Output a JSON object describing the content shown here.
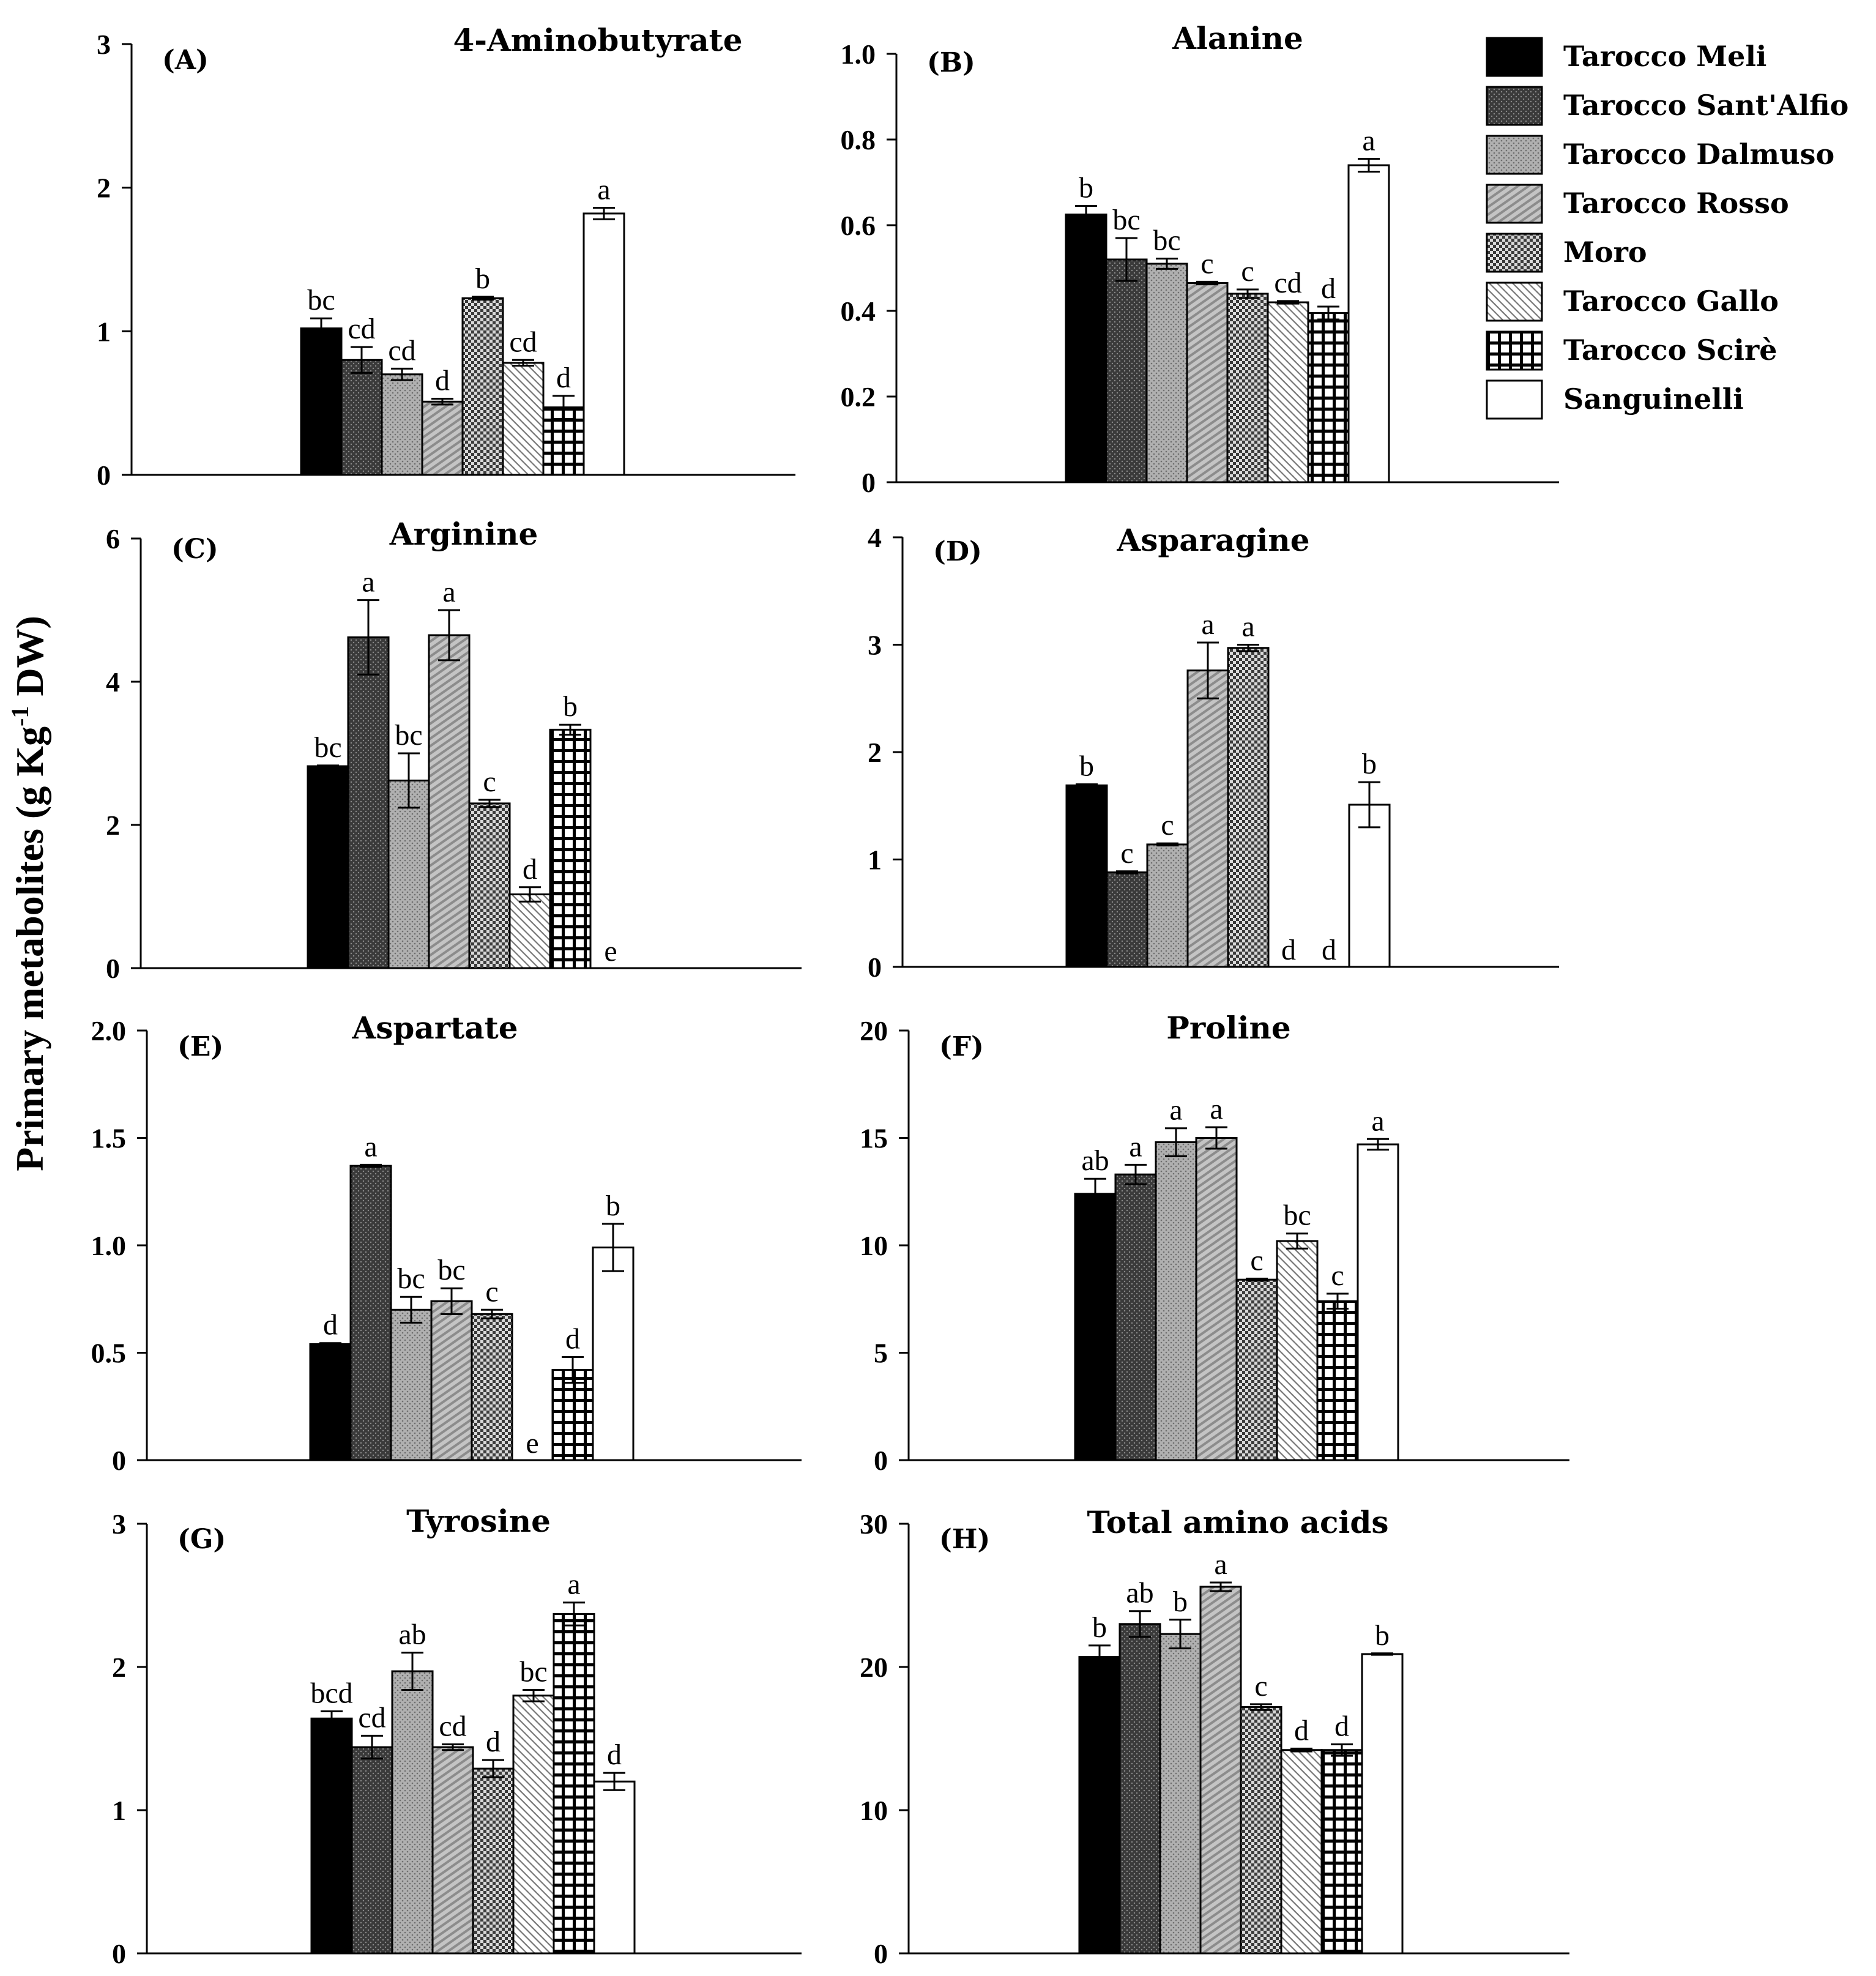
{
  "y_axis_label": "Primary metabolites (g Kg",
  "y_axis_label_sup": "-1",
  "y_axis_label_end": " DW)",
  "legend": [
    {
      "name": "Tarocco Meli",
      "fill": "solid-black"
    },
    {
      "name": "Tarocco Sant'Alfio",
      "fill": "dark-dots"
    },
    {
      "name": "Tarocco Dalmuso",
      "fill": "light-dots"
    },
    {
      "name": "Tarocco Rosso",
      "fill": "diagonal-light"
    },
    {
      "name": "Moro",
      "fill": "dark-checker"
    },
    {
      "name": "Tarocco Gallo",
      "fill": "diagonal-fine"
    },
    {
      "name": "Tarocco Scirè",
      "fill": "grid"
    },
    {
      "name": "Sanguinelli",
      "fill": "white"
    }
  ],
  "chart_data": [
    {
      "type": "bar",
      "panel": "(A)",
      "title": "4-Aminobutyrate",
      "ylim": [
        0,
        3
      ],
      "yticks": [
        "0",
        "1",
        "2",
        "3"
      ],
      "categories": [
        "Tarocco Meli",
        "Tarocco Sant'Alfio",
        "Tarocco Dalmuso",
        "Tarocco Rosso",
        "Moro",
        "Tarocco Gallo",
        "Tarocco Scirè",
        "Sanguinelli"
      ],
      "values": [
        1.02,
        0.8,
        0.7,
        0.51,
        1.23,
        0.78,
        0.47,
        1.82
      ],
      "errors": [
        0.07,
        0.09,
        0.04,
        0.02,
        0.01,
        0.02,
        0.08,
        0.04
      ],
      "letters": [
        "bc",
        "cd",
        "cd",
        "d",
        "b",
        "cd",
        "d",
        "a"
      ]
    },
    {
      "type": "bar",
      "panel": "(B)",
      "title": "Alanine",
      "ylim": [
        0,
        1.0
      ],
      "yticks": [
        "0",
        "0.2",
        "0.4",
        "0.6",
        "0.8",
        "1.0"
      ],
      "categories": [
        "Tarocco Meli",
        "Tarocco Sant'Alfio",
        "Tarocco Dalmuso",
        "Tarocco Rosso",
        "Moro",
        "Tarocco Gallo",
        "Tarocco Scirè",
        "Sanguinelli"
      ],
      "values": [
        0.625,
        0.52,
        0.51,
        0.465,
        0.44,
        0.42,
        0.395,
        0.74
      ],
      "errors": [
        0.02,
        0.05,
        0.012,
        0.003,
        0.01,
        0.003,
        0.015,
        0.015
      ],
      "letters": [
        "b",
        "bc",
        "bc",
        "c",
        "c",
        "cd",
        "d",
        "a"
      ]
    },
    {
      "type": "bar",
      "panel": "(C)",
      "title": "Arginine",
      "ylim": [
        0,
        6
      ],
      "yticks": [
        "0",
        "2",
        "4",
        "6"
      ],
      "categories": [
        "Tarocco Meli",
        "Tarocco Sant'Alfio",
        "Tarocco Dalmuso",
        "Tarocco Rosso",
        "Moro",
        "Tarocco Gallo",
        "Tarocco Scirè",
        "Sanguinelli"
      ],
      "values": [
        2.82,
        4.62,
        2.62,
        4.65,
        2.3,
        1.03,
        3.33,
        0
      ],
      "errors": [
        0.01,
        0.52,
        0.38,
        0.35,
        0.05,
        0.1,
        0.07,
        0
      ],
      "letters": [
        "bc",
        "a",
        "bc",
        "a",
        "c",
        "d",
        "b",
        "e"
      ]
    },
    {
      "type": "bar",
      "panel": "(D)",
      "title": "Asparagine",
      "ylim": [
        0,
        4
      ],
      "yticks": [
        "0",
        "1",
        "2",
        "3",
        "4"
      ],
      "categories": [
        "Tarocco Meli",
        "Tarocco Sant'Alfio",
        "Tarocco Dalmuso",
        "Tarocco Rosso",
        "Moro",
        "Tarocco Gallo",
        "Tarocco Scirè",
        "Sanguinelli"
      ],
      "values": [
        1.69,
        0.88,
        1.14,
        2.76,
        2.97,
        0,
        0,
        1.51
      ],
      "errors": [
        0.01,
        0.01,
        0.01,
        0.26,
        0.03,
        0,
        0,
        0.21
      ],
      "letters": [
        "b",
        "c",
        "c",
        "a",
        "a",
        "d",
        "d",
        "b"
      ]
    },
    {
      "type": "bar",
      "panel": "(E)",
      "title": "Aspartate",
      "ylim": [
        0,
        2.0
      ],
      "yticks": [
        "0",
        "0.5",
        "1.0",
        "1.5",
        "2.0"
      ],
      "categories": [
        "Tarocco Meli",
        "Tarocco Sant'Alfio",
        "Tarocco Dalmuso",
        "Tarocco Rosso",
        "Moro",
        "Tarocco Gallo",
        "Tarocco Scirè",
        "Sanguinelli"
      ],
      "values": [
        0.54,
        1.37,
        0.7,
        0.74,
        0.68,
        0,
        0.42,
        0.99
      ],
      "errors": [
        0.005,
        0.005,
        0.06,
        0.06,
        0.02,
        0,
        0.06,
        0.11
      ],
      "letters": [
        "d",
        "a",
        "bc",
        "bc",
        "c",
        "e",
        "d",
        "b"
      ]
    },
    {
      "type": "bar",
      "panel": "(F)",
      "title": "Proline",
      "ylim": [
        0,
        20
      ],
      "yticks": [
        "0",
        "5",
        "10",
        "15",
        "20"
      ],
      "categories": [
        "Tarocco Meli",
        "Tarocco Sant'Alfio",
        "Tarocco Dalmuso",
        "Tarocco Rosso",
        "Moro",
        "Tarocco Gallo",
        "Tarocco Scirè",
        "Sanguinelli"
      ],
      "values": [
        12.4,
        13.3,
        14.8,
        15.0,
        8.4,
        10.2,
        7.4,
        14.7
      ],
      "errors": [
        0.7,
        0.45,
        0.65,
        0.5,
        0.05,
        0.35,
        0.35,
        0.25
      ],
      "letters": [
        "ab",
        "a",
        "a",
        "a",
        "c",
        "bc",
        "c",
        "a"
      ]
    },
    {
      "type": "bar",
      "panel": "(G)",
      "title": "Tyrosine",
      "ylim": [
        0,
        3
      ],
      "yticks": [
        "0",
        "1",
        "2",
        "3"
      ],
      "categories": [
        "Tarocco Meli",
        "Tarocco Sant'Alfio",
        "Tarocco Dalmuso",
        "Tarocco Rosso",
        "Moro",
        "Tarocco Gallo",
        "Tarocco Scirè",
        "Sanguinelli"
      ],
      "values": [
        1.64,
        1.44,
        1.97,
        1.44,
        1.29,
        1.8,
        2.37,
        1.2
      ],
      "errors": [
        0.05,
        0.08,
        0.13,
        0.02,
        0.06,
        0.04,
        0.08,
        0.06
      ],
      "letters": [
        "bcd",
        "cd",
        "ab",
        "cd",
        "d",
        "bc",
        "a",
        "d"
      ]
    },
    {
      "type": "bar",
      "panel": "(H)",
      "title": "Total amino acids",
      "ylim": [
        0,
        30
      ],
      "yticks": [
        "0",
        "10",
        "20",
        "30"
      ],
      "categories": [
        "Tarocco Meli",
        "Tarocco Sant'Alfio",
        "Tarocco Dalmuso",
        "Tarocco Rosso",
        "Moro",
        "Tarocco Gallo",
        "Tarocco Scirè",
        "Sanguinelli"
      ],
      "values": [
        20.7,
        23.0,
        22.3,
        25.6,
        17.2,
        14.2,
        14.2,
        20.9
      ],
      "errors": [
        0.8,
        0.9,
        1.0,
        0.3,
        0.2,
        0.1,
        0.4,
        0.05
      ],
      "letters": [
        "b",
        "ab",
        "b",
        "a",
        "c",
        "d",
        "d",
        "b"
      ]
    }
  ]
}
